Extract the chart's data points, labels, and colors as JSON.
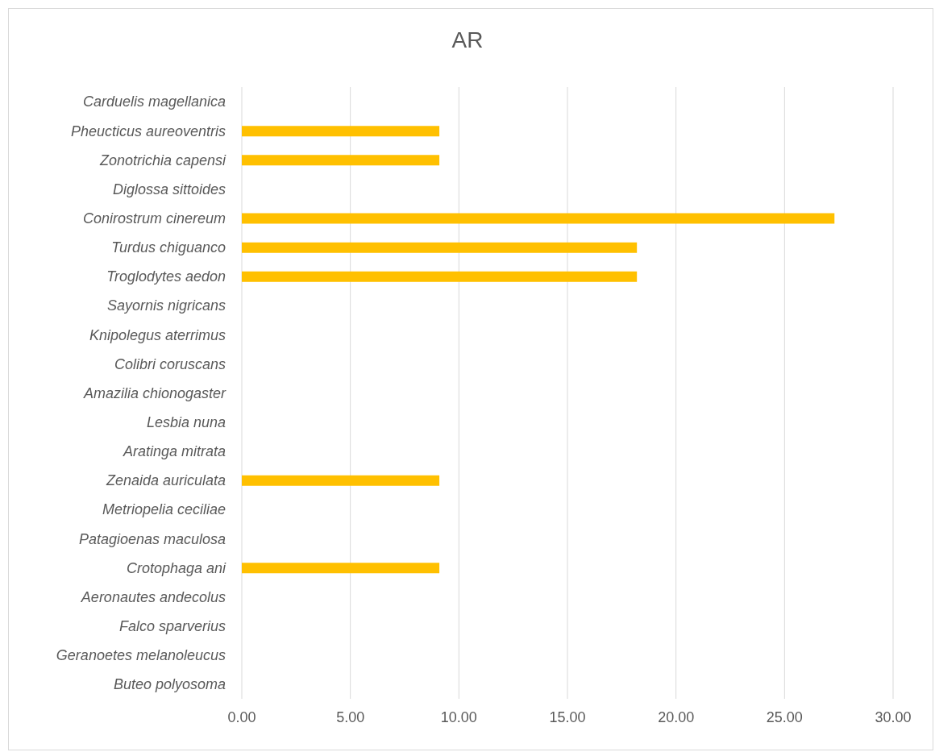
{
  "chart_data": {
    "type": "bar",
    "title": "AR",
    "orientation": "horizontal",
    "categories": [
      "Carduelis magellanica",
      "Pheucticus aureoventris",
      "Zonotrichia capensi",
      "Diglossa sittoides",
      "Conirostrum cinereum",
      "Turdus chiguanco",
      "Troglodytes aedon",
      "Sayornis nigricans",
      "Knipolegus aterrimus",
      "Colibri coruscans",
      "Amazilia chionogaster",
      "Lesbia nuna",
      "Aratinga mitrata",
      "Zenaida auriculata",
      "Metriopelia ceciliae",
      "Patagioenas maculosa",
      "Crotophaga ani",
      "Aeronautes andecolus",
      "Falco sparverius",
      "Geranoetes melanoleucus",
      "Buteo polyosoma"
    ],
    "values": [
      0,
      9.1,
      9.1,
      0,
      27.3,
      18.2,
      18.2,
      0,
      0,
      0,
      0,
      0,
      0,
      9.1,
      0,
      0,
      9.1,
      0,
      0,
      0,
      0
    ],
    "color": "#ffc000",
    "xlim": [
      0,
      30
    ],
    "xticks": [
      {
        "value": 0,
        "label": "0.00"
      },
      {
        "value": 5,
        "label": "5.00"
      },
      {
        "value": 10,
        "label": "10.00"
      },
      {
        "value": 15,
        "label": "15.00"
      },
      {
        "value": 20,
        "label": "20.00"
      },
      {
        "value": 25,
        "label": "25.00"
      },
      {
        "value": 30,
        "label": "30.00"
      }
    ],
    "grid": "x"
  }
}
